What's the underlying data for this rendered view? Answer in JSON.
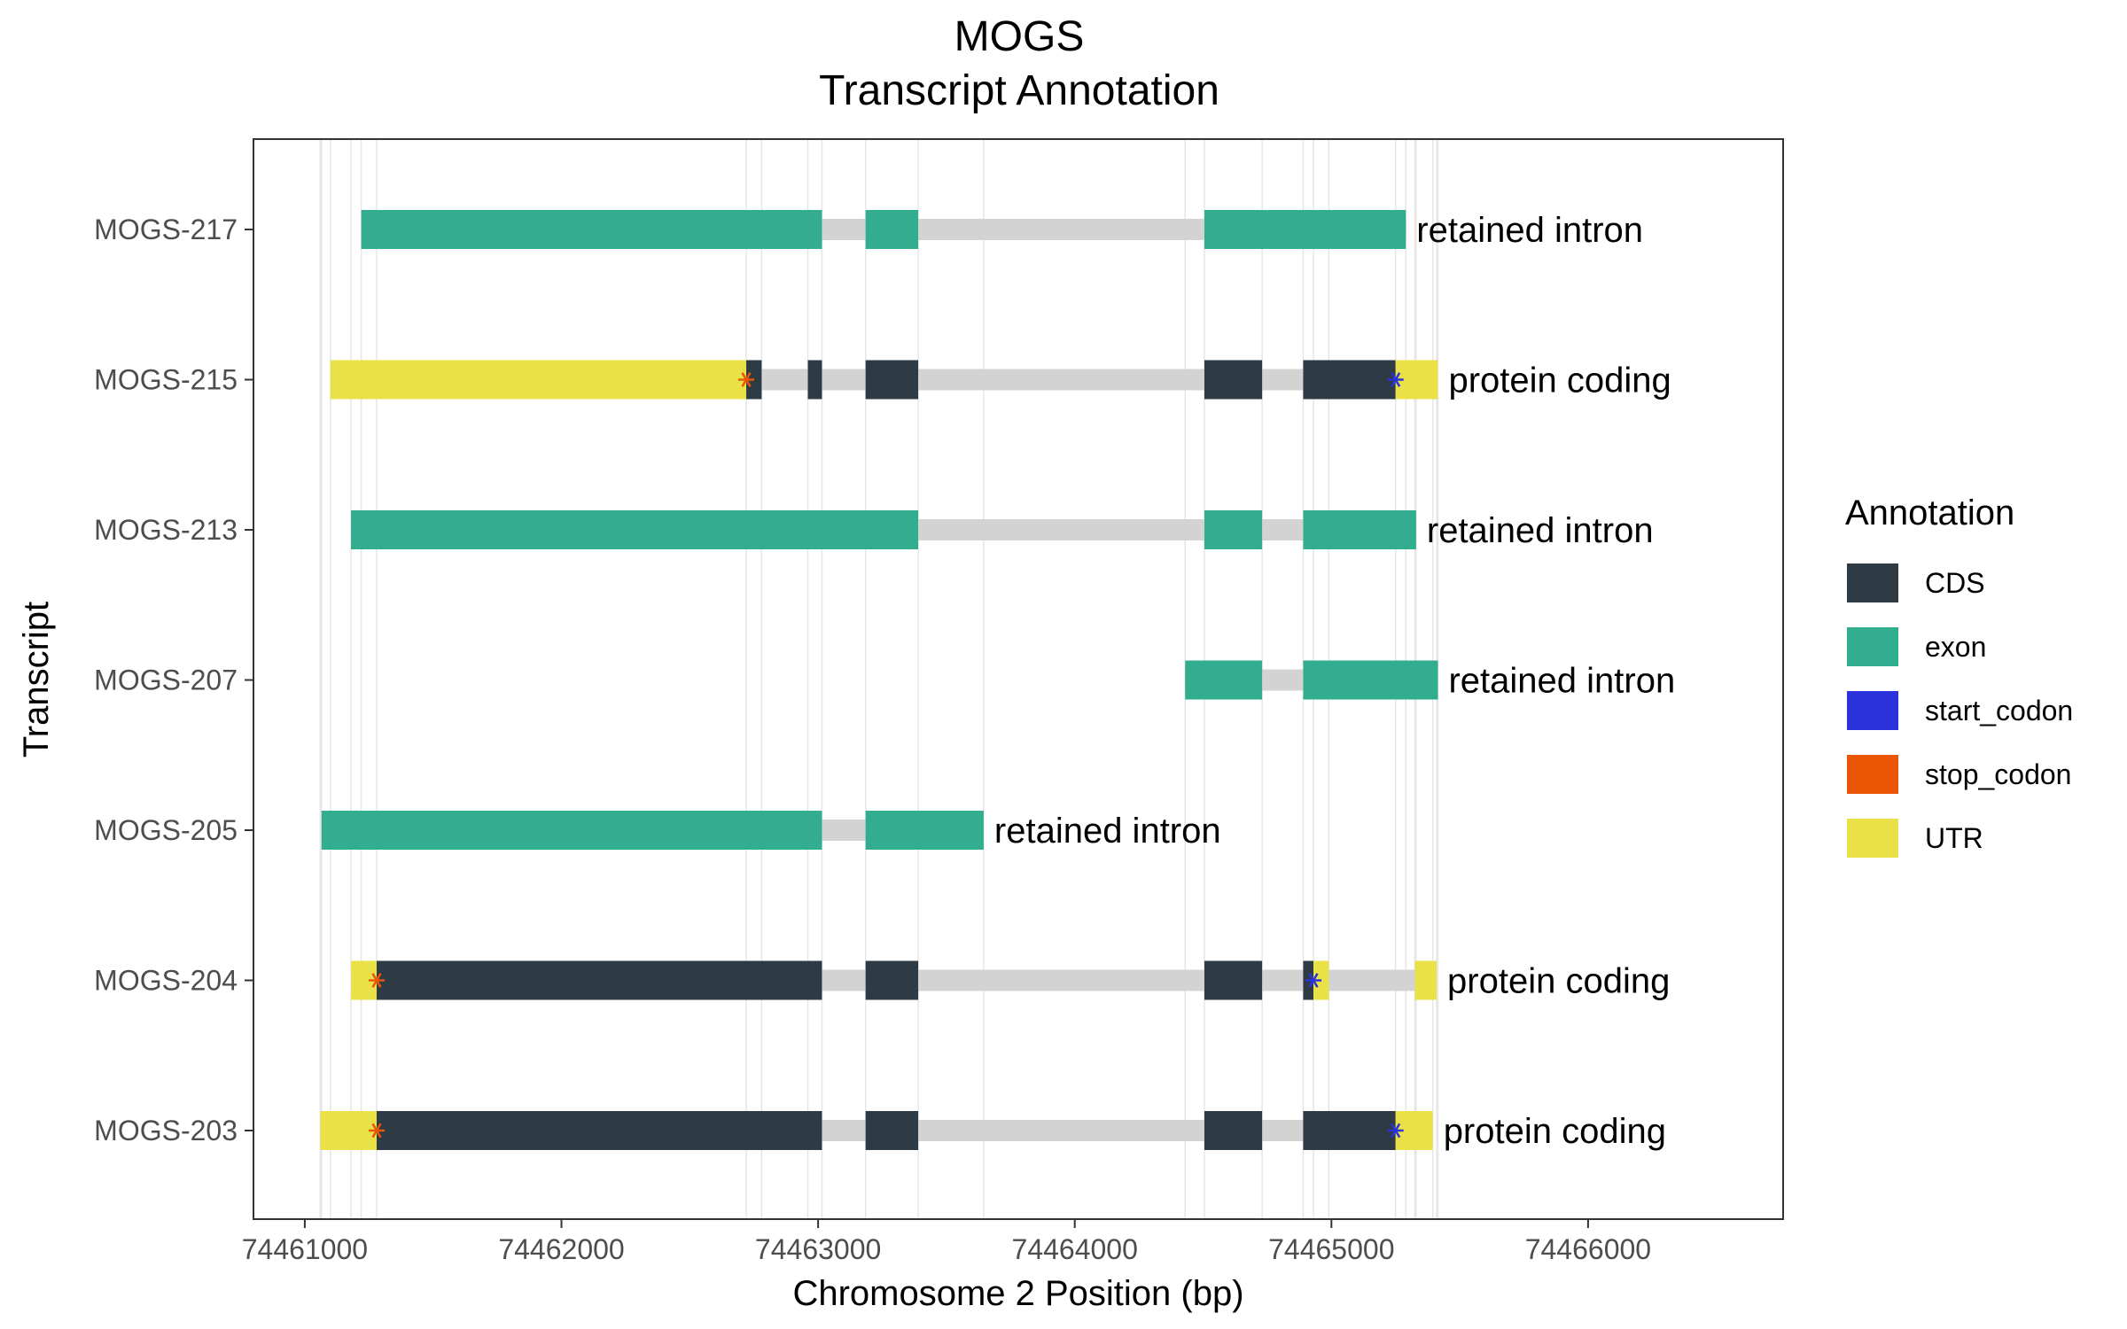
{
  "chart_data": {
    "type": "gantt",
    "title": "MOGS",
    "subtitle": "Transcript Annotation",
    "xlabel": "Chromosome 2 Position (bp)",
    "ylabel": "Transcript",
    "xlim": [
      74460800,
      74466760
    ],
    "x_ticks": [
      74461000,
      74462000,
      74463000,
      74464000,
      74465000,
      74466000
    ],
    "x_tick_labels": [
      "74461000",
      "74462000",
      "74463000",
      "74464000",
      "74465000",
      "74466000"
    ],
    "grid": true,
    "legend_position": "right",
    "legend": {
      "title": "Annotation",
      "items": [
        {
          "key": "CDS",
          "label": "CDS",
          "color": "#2e3b45"
        },
        {
          "key": "exon",
          "label": "exon",
          "color": "#33ad8f"
        },
        {
          "key": "start_codon",
          "label": "start_codon",
          "color": "#2b32dc"
        },
        {
          "key": "stop_codon",
          "label": "stop_codon",
          "color": "#ea5506"
        },
        {
          "key": "UTR",
          "label": "UTR",
          "color": "#eae148"
        }
      ]
    },
    "intron_color": "#d3d3d3",
    "transcripts": [
      {
        "name": "MOGS-217",
        "biotype": "retained intron",
        "start": 74461220,
        "end": 74465290,
        "segments": [
          {
            "type": "exon",
            "start": 74461220,
            "end": 74463015
          },
          {
            "type": "exon",
            "start": 74463185,
            "end": 74463390
          },
          {
            "type": "exon",
            "start": 74464505,
            "end": 74465290
          }
        ],
        "codons": []
      },
      {
        "name": "MOGS-215",
        "biotype": "protein coding",
        "start": 74461100,
        "end": 74465415,
        "segments": [
          {
            "type": "UTR",
            "start": 74461100,
            "end": 74462720
          },
          {
            "type": "CDS",
            "start": 74462720,
            "end": 74462780
          },
          {
            "type": "CDS",
            "start": 74462960,
            "end": 74463015
          },
          {
            "type": "CDS",
            "start": 74463185,
            "end": 74463390
          },
          {
            "type": "CDS",
            "start": 74464505,
            "end": 74464730
          },
          {
            "type": "CDS",
            "start": 74464890,
            "end": 74465250
          },
          {
            "type": "UTR",
            "start": 74465250,
            "end": 74465415
          }
        ],
        "codons": [
          {
            "type": "stop_codon",
            "pos": 74462720
          },
          {
            "type": "start_codon",
            "pos": 74465250
          }
        ]
      },
      {
        "name": "MOGS-213",
        "biotype": "retained intron",
        "start": 74461180,
        "end": 74465330,
        "segments": [
          {
            "type": "exon",
            "start": 74461180,
            "end": 74463390
          },
          {
            "type": "exon",
            "start": 74464505,
            "end": 74464730
          },
          {
            "type": "exon",
            "start": 74464890,
            "end": 74465330
          }
        ],
        "codons": []
      },
      {
        "name": "MOGS-207",
        "biotype": "retained intron",
        "start": 74464430,
        "end": 74465415,
        "segments": [
          {
            "type": "exon",
            "start": 74464430,
            "end": 74464730
          },
          {
            "type": "exon",
            "start": 74464890,
            "end": 74465415
          }
        ],
        "codons": []
      },
      {
        "name": "MOGS-205",
        "biotype": "retained intron",
        "start": 74461065,
        "end": 74463645,
        "segments": [
          {
            "type": "exon",
            "start": 74461065,
            "end": 74463015
          },
          {
            "type": "exon",
            "start": 74463185,
            "end": 74463645
          }
        ],
        "codons": []
      },
      {
        "name": "MOGS-204",
        "biotype": "protein coding",
        "start": 74461180,
        "end": 74465410,
        "segments": [
          {
            "type": "UTR",
            "start": 74461180,
            "end": 74461280
          },
          {
            "type": "CDS",
            "start": 74461280,
            "end": 74463015
          },
          {
            "type": "CDS",
            "start": 74463185,
            "end": 74463390
          },
          {
            "type": "CDS",
            "start": 74464505,
            "end": 74464730
          },
          {
            "type": "CDS",
            "start": 74464890,
            "end": 74464930
          },
          {
            "type": "UTR",
            "start": 74464930,
            "end": 74464990
          },
          {
            "type": "UTR",
            "start": 74465325,
            "end": 74465410
          }
        ],
        "codons": [
          {
            "type": "stop_codon",
            "pos": 74461280
          },
          {
            "type": "start_codon",
            "pos": 74464930
          }
        ]
      },
      {
        "name": "MOGS-203",
        "biotype": "protein coding",
        "start": 74461060,
        "end": 74465395,
        "segments": [
          {
            "type": "UTR",
            "start": 74461060,
            "end": 74461280
          },
          {
            "type": "CDS",
            "start": 74461280,
            "end": 74463015
          },
          {
            "type": "CDS",
            "start": 74463185,
            "end": 74463390
          },
          {
            "type": "CDS",
            "start": 74464505,
            "end": 74464730
          },
          {
            "type": "CDS",
            "start": 74464890,
            "end": 74465250
          },
          {
            "type": "UTR",
            "start": 74465250,
            "end": 74465395
          }
        ],
        "codons": [
          {
            "type": "stop_codon",
            "pos": 74461280
          },
          {
            "type": "start_codon",
            "pos": 74465250
          }
        ]
      }
    ]
  }
}
